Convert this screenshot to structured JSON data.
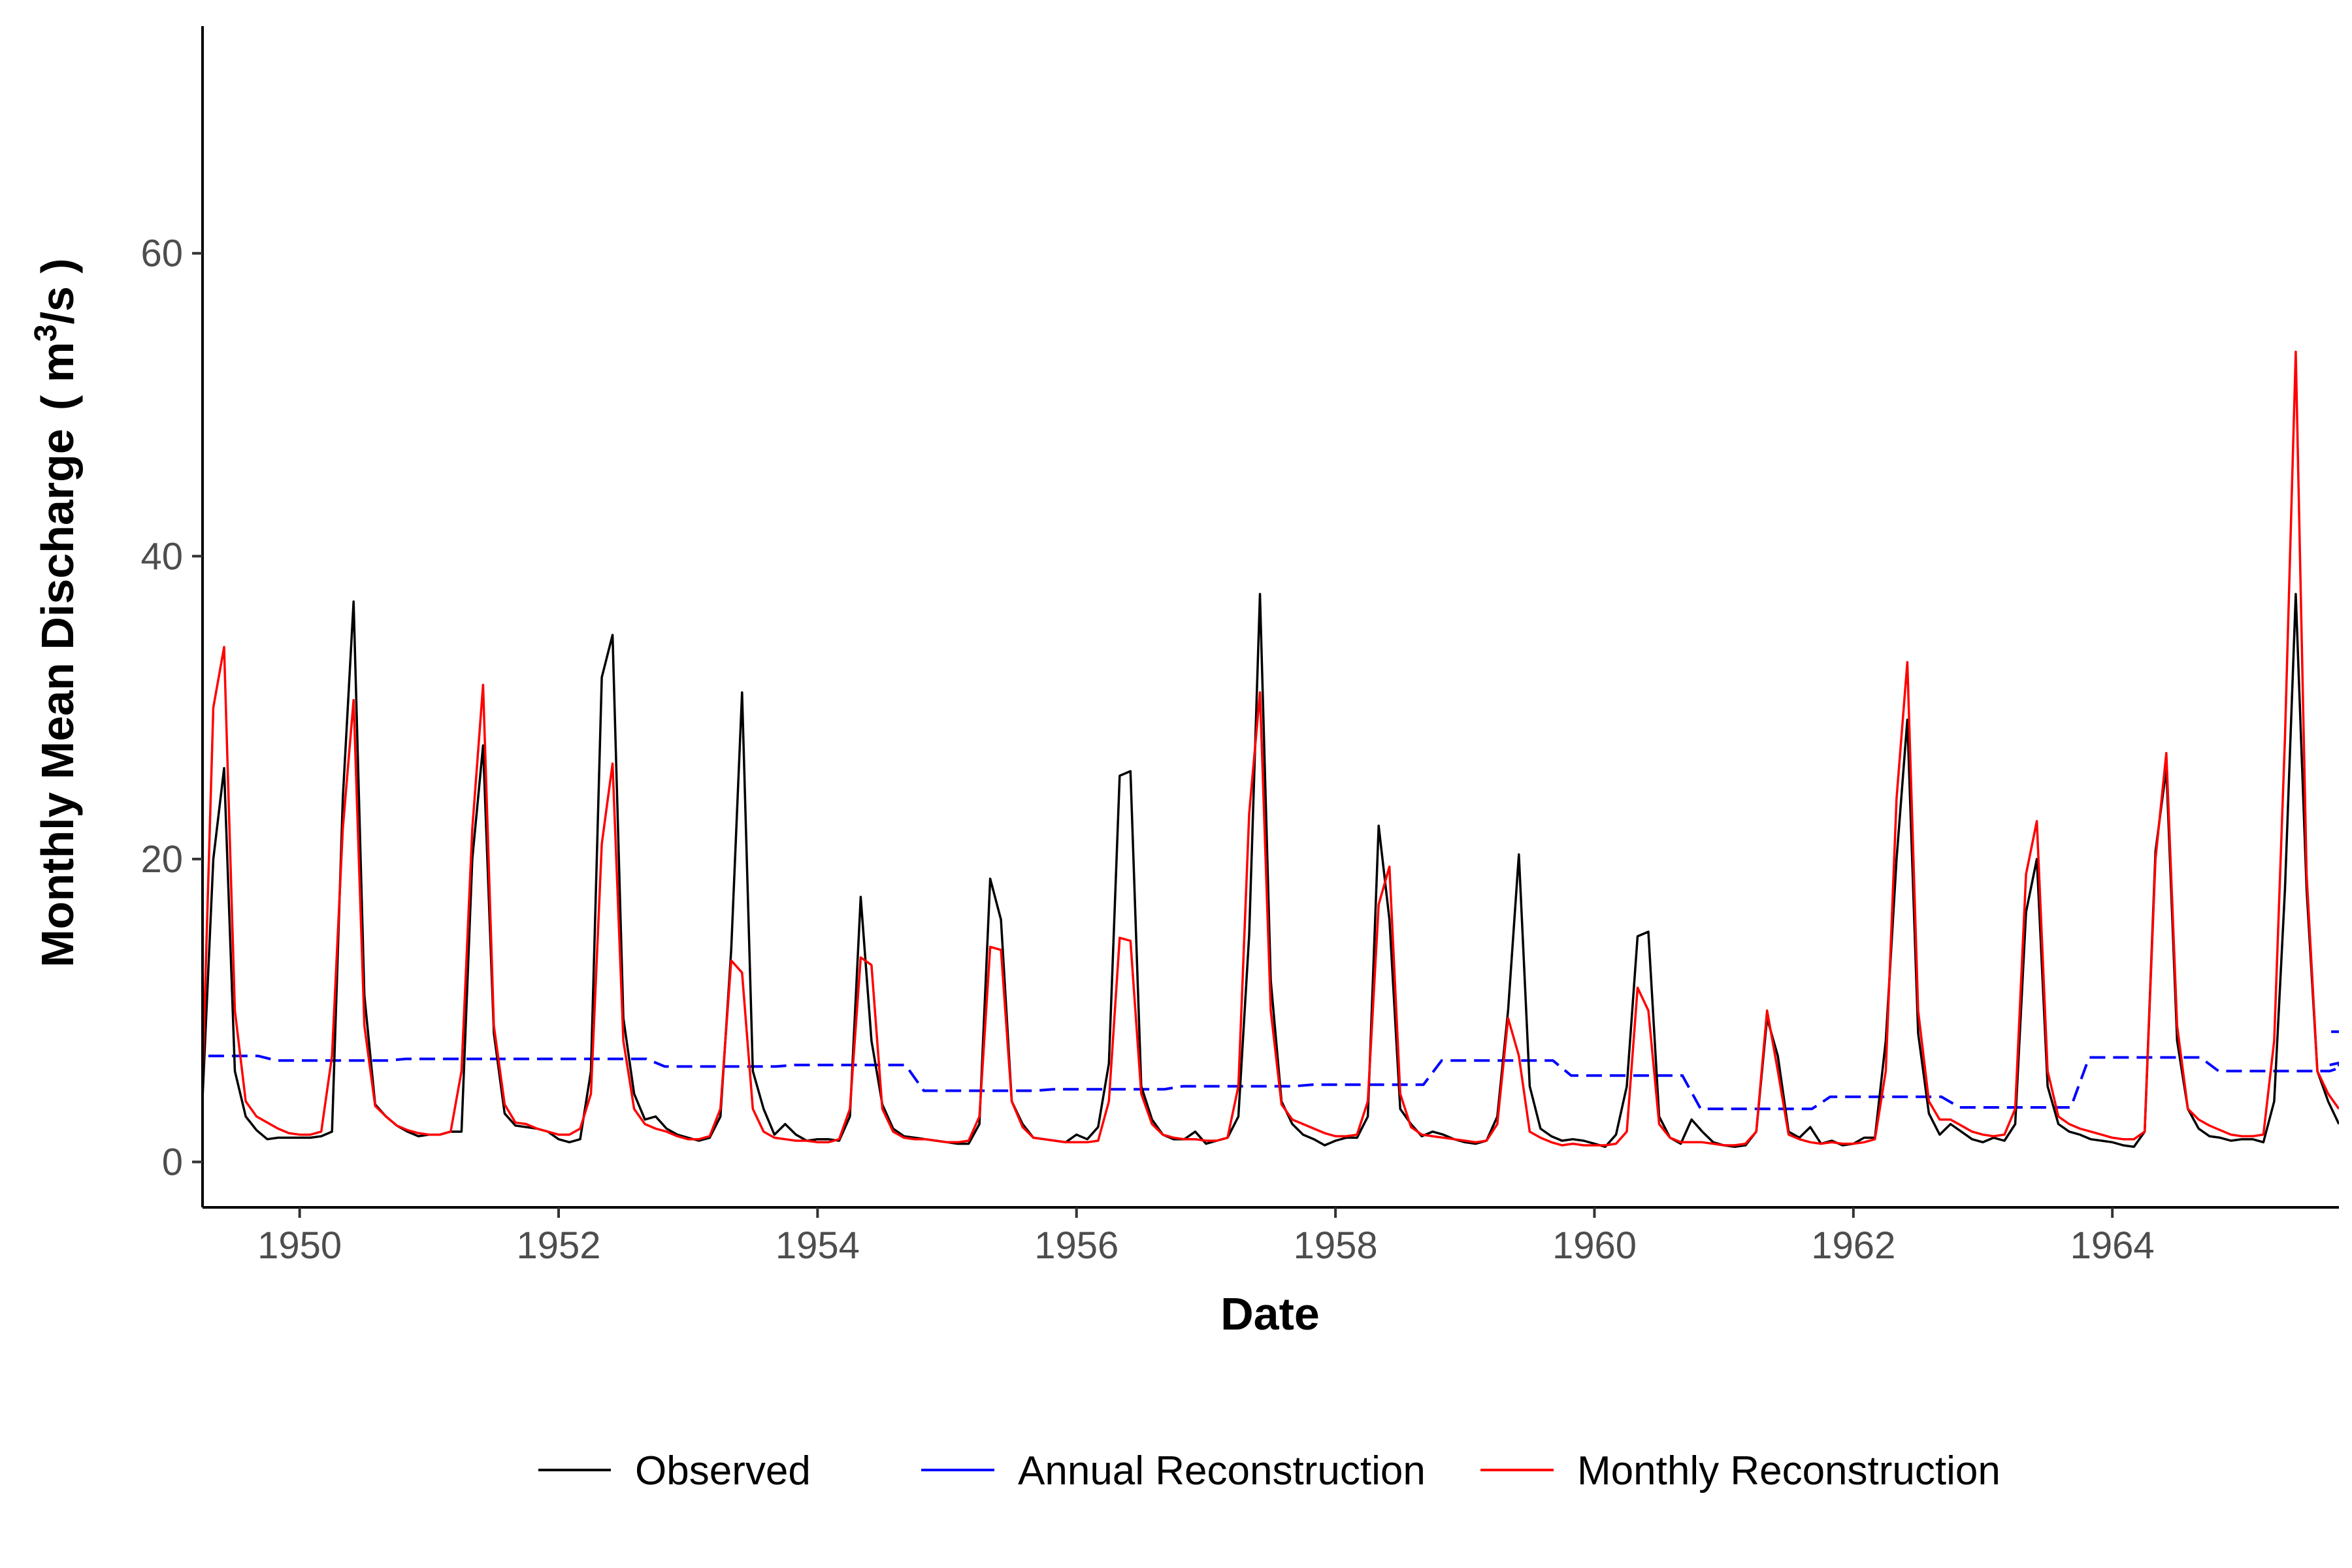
{
  "chart_data": {
    "type": "line",
    "xlabel": "Date",
    "ylabel_main": "Monthly Mean Discharge",
    "ylabel_unit": "( m",
    "ylabel_sup": "3",
    "ylabel_tail": "/s )",
    "xlim": [
      "1949-04",
      "1965-10"
    ],
    "ylim": [
      -3,
      75
    ],
    "x_ticks": [
      "1950",
      "1952",
      "1954",
      "1956",
      "1958",
      "1960",
      "1962",
      "1964"
    ],
    "y_ticks": [
      "0",
      "20",
      "40",
      "60"
    ],
    "legend": {
      "placement": "bottom",
      "entries": [
        "Observed",
        "Annual Reconstruction",
        "Monthly Reconstruction"
      ]
    },
    "colors": {
      "observed": "#000000",
      "annual": "#0000ff",
      "monthly": "#ff0000"
    },
    "start_month": "1949-04",
    "series": [
      {
        "name": "Observed",
        "style": "solid",
        "values": [
          4.2,
          20.0,
          26.0,
          6.0,
          3.0,
          2.1,
          1.5,
          1.6,
          1.6,
          1.6,
          1.6,
          1.7,
          2.0,
          24.0,
          37.0,
          11.0,
          3.8,
          3.0,
          2.4,
          2.0,
          1.7,
          1.8,
          1.8,
          2.0,
          2.0,
          20.0,
          27.5,
          8.5,
          3.2,
          2.4,
          2.3,
          2.2,
          2.0,
          1.5,
          1.3,
          1.5,
          6.0,
          32.0,
          34.8,
          9.5,
          4.5,
          2.8,
          3.0,
          2.2,
          1.8,
          1.6,
          1.4,
          1.6,
          3.0,
          14.0,
          31.0,
          6.0,
          3.5,
          1.8,
          2.5,
          1.8,
          1.4,
          1.5,
          1.5,
          1.4,
          3.0,
          17.5,
          8.0,
          3.8,
          2.2,
          1.7,
          1.6,
          1.5,
          1.4,
          1.3,
          1.2,
          1.2,
          2.5,
          18.7,
          16.0,
          4.0,
          2.5,
          1.6,
          1.5,
          1.4,
          1.3,
          1.8,
          1.5,
          2.3,
          6.5,
          25.5,
          25.8,
          5.0,
          2.8,
          1.8,
          1.5,
          1.5,
          2.0,
          1.2,
          1.4,
          1.6,
          3.0,
          15.0,
          37.5,
          12.0,
          4.0,
          2.5,
          1.8,
          1.5,
          1.1,
          1.4,
          1.6,
          1.6,
          3.0,
          22.2,
          16.0,
          3.5,
          2.5,
          1.7,
          2.0,
          1.8,
          1.5,
          1.3,
          1.2,
          1.4,
          3.0,
          10.0,
          20.3,
          5.0,
          2.2,
          1.7,
          1.4,
          1.5,
          1.4,
          1.2,
          1.0,
          1.8,
          5.0,
          14.9,
          15.2,
          3.0,
          1.6,
          1.2,
          2.8,
          2.0,
          1.3,
          1.1,
          1.0,
          1.1,
          2.0,
          9.5,
          7.0,
          2.0,
          1.6,
          2.3,
          1.2,
          1.4,
          1.1,
          1.2,
          1.6,
          1.6,
          8.0,
          20.0,
          29.2,
          8.5,
          3.2,
          1.8,
          2.5,
          2.0,
          1.5,
          1.3,
          1.6,
          1.4,
          2.5,
          16.5,
          20.0,
          5.0,
          2.5,
          2.0,
          1.8,
          1.5,
          1.4,
          1.3,
          1.1,
          1.0,
          2.0,
          20.5,
          26.0,
          8.0,
          3.5,
          2.2,
          1.7,
          1.6,
          1.4,
          1.5,
          1.5,
          1.3,
          4.0,
          18.0,
          37.5,
          18.0,
          6.0,
          4.0,
          2.5
        ]
      },
      {
        "name": "Annual Reconstruction",
        "style": "dashed",
        "step_start": "1948-10",
        "annual_values": [
          7.0,
          6.7,
          6.8,
          6.8,
          6.3,
          6.4,
          4.7,
          4.8,
          5.0,
          5.1,
          6.7,
          5.7,
          3.5,
          4.3,
          3.6,
          6.9,
          6.0,
          6.4,
          8.6
        ],
        "end": "1965-10"
      },
      {
        "name": "Monthly Reconstruction",
        "style": "solid",
        "values": [
          5.5,
          30.0,
          34.0,
          10.0,
          4.0,
          3.0,
          2.6,
          2.2,
          1.9,
          1.8,
          1.8,
          2.0,
          7.0,
          22.0,
          30.5,
          9.0,
          3.7,
          3.0,
          2.4,
          2.1,
          1.9,
          1.8,
          1.8,
          2.0,
          6.0,
          22.0,
          31.5,
          9.0,
          3.8,
          2.6,
          2.5,
          2.2,
          2.0,
          1.8,
          1.8,
          2.2,
          4.5,
          21.0,
          26.3,
          8.0,
          3.5,
          2.5,
          2.2,
          2.0,
          1.7,
          1.5,
          1.5,
          1.7,
          3.5,
          13.3,
          12.5,
          3.5,
          2.0,
          1.6,
          1.5,
          1.4,
          1.4,
          1.3,
          1.3,
          1.5,
          3.5,
          13.5,
          13.0,
          3.5,
          2.0,
          1.6,
          1.5,
          1.5,
          1.4,
          1.3,
          1.3,
          1.4,
          3.0,
          14.2,
          14.0,
          4.0,
          2.3,
          1.6,
          1.5,
          1.4,
          1.3,
          1.3,
          1.3,
          1.4,
          4.0,
          14.8,
          14.6,
          4.5,
          2.5,
          1.8,
          1.6,
          1.5,
          1.5,
          1.4,
          1.4,
          1.6,
          5.0,
          23.0,
          31.0,
          10.0,
          3.8,
          2.8,
          2.5,
          2.2,
          1.9,
          1.7,
          1.7,
          1.8,
          4.0,
          17.0,
          19.5,
          4.5,
          2.3,
          1.8,
          1.7,
          1.6,
          1.5,
          1.4,
          1.3,
          1.4,
          2.5,
          9.5,
          7.0,
          2.0,
          1.6,
          1.3,
          1.1,
          1.2,
          1.1,
          1.1,
          1.1,
          1.2,
          2.0,
          11.5,
          10.0,
          2.5,
          1.6,
          1.3,
          1.3,
          1.3,
          1.2,
          1.1,
          1.1,
          1.2,
          2.0,
          10.0,
          6.0,
          1.8,
          1.5,
          1.3,
          1.2,
          1.3,
          1.2,
          1.2,
          1.3,
          1.5,
          6.0,
          24.0,
          33.0,
          10.0,
          4.0,
          2.8,
          2.8,
          2.4,
          2.0,
          1.8,
          1.7,
          1.8,
          3.5,
          19.0,
          22.5,
          6.0,
          3.0,
          2.5,
          2.2,
          2.0,
          1.8,
          1.6,
          1.5,
          1.5,
          2.0,
          20.0,
          27.0,
          9.0,
          3.5,
          2.8,
          2.4,
          2.1,
          1.8,
          1.7,
          1.7,
          1.8,
          8.0,
          28.0,
          53.5,
          19.0,
          6.0,
          4.5,
          3.5
        ]
      }
    ]
  }
}
